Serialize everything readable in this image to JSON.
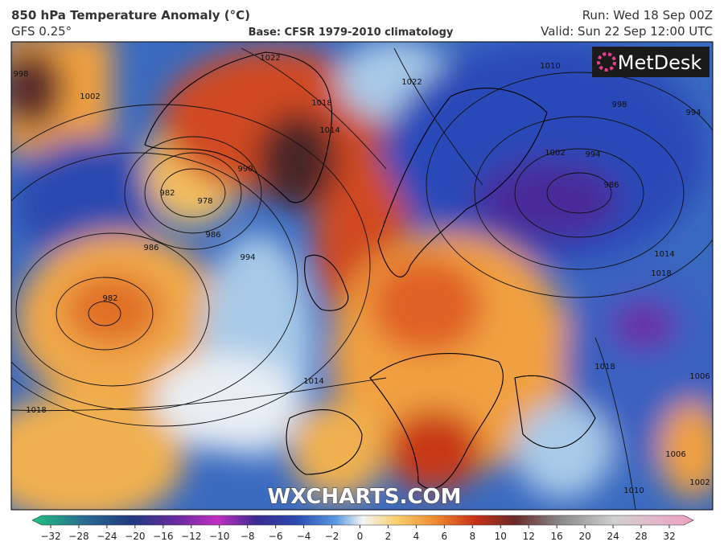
{
  "header": {
    "title": "850 hPa Temperature Anomaly (°C)",
    "model": "GFS 0.25°",
    "base": "Base: CFSR 1979-2010 climatology",
    "run": "Run: Wed 18 Sep 00Z",
    "valid": "Valid: Sun 22 Sep 12:00 UTC"
  },
  "logo": "MetDesk",
  "watermark": "WXCHARTS.COM",
  "isobar_labels": [
    1022,
    1018,
    1014,
    1002,
    998,
    990,
    982,
    978,
    986,
    994,
    986,
    982,
    1014,
    1018,
    1022,
    1010,
    998,
    994,
    994,
    986,
    1002,
    1014,
    1018,
    1018,
    1006,
    1010,
    1002,
    1006
  ],
  "colorbar": {
    "ticks": [
      {
        "value": -32,
        "label": "−32"
      },
      {
        "value": -28,
        "label": "−28"
      },
      {
        "value": -24,
        "label": "−24"
      },
      {
        "value": -20,
        "label": "−20"
      },
      {
        "value": -16,
        "label": "−16"
      },
      {
        "value": -12,
        "label": "−12"
      },
      {
        "value": -10,
        "label": "−10"
      },
      {
        "value": -8,
        "label": "−8"
      },
      {
        "value": -6,
        "label": "−6"
      },
      {
        "value": -4,
        "label": "−4"
      },
      {
        "value": -2,
        "label": "−2"
      },
      0,
      2,
      4,
      6,
      8,
      10,
      12,
      16,
      20,
      24,
      28,
      32
    ]
  }
}
